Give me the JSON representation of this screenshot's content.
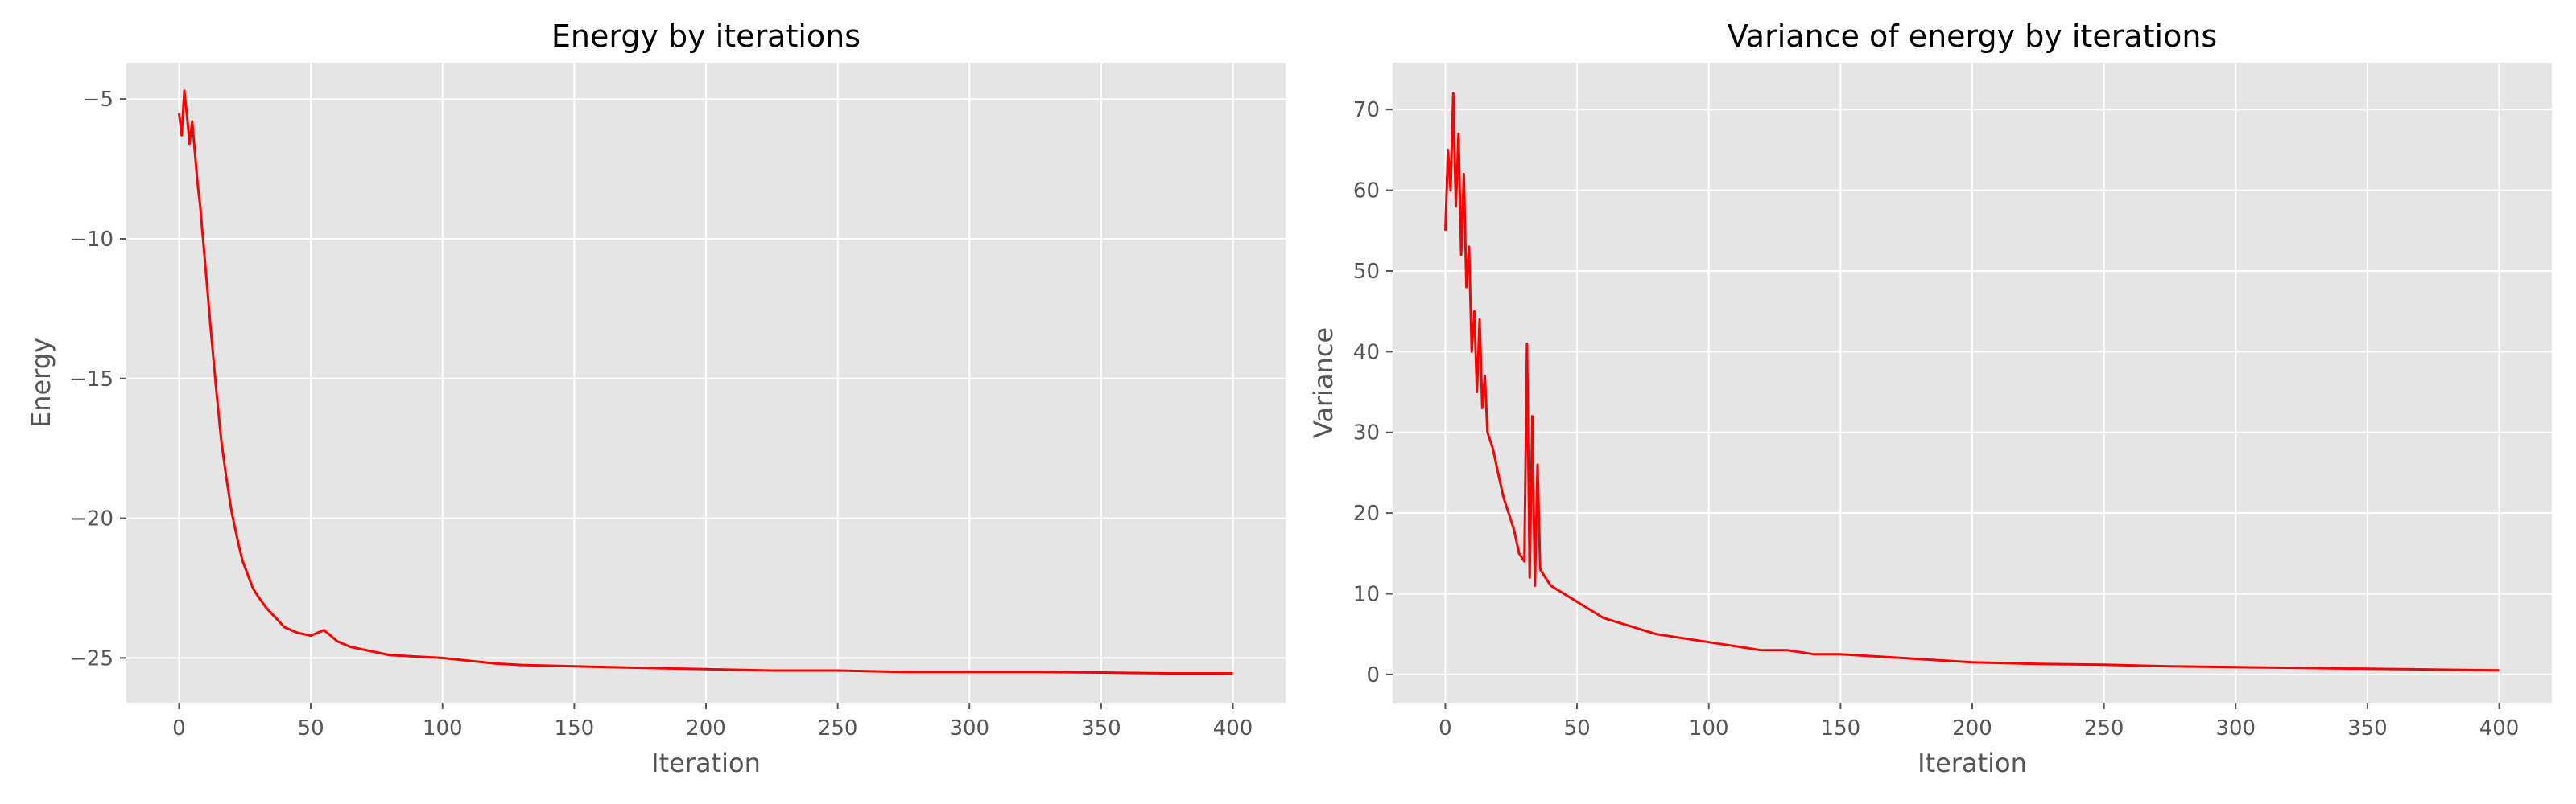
{
  "chart_data": [
    {
      "type": "line",
      "title": "Energy by iterations",
      "xlabel": "Iteration",
      "ylabel": "Energy",
      "xlim": [
        -20,
        420
      ],
      "ylim": [
        -26.6,
        -3.7
      ],
      "xticks": [
        0,
        50,
        100,
        150,
        200,
        250,
        300,
        350,
        400
      ],
      "yticks": [
        -5,
        -10,
        -15,
        -20,
        -25
      ],
      "grid": true,
      "series": [
        {
          "color": "#ff0000",
          "x": [
            0,
            1,
            2,
            3,
            4,
            5,
            6,
            7,
            8,
            9,
            10,
            12,
            14,
            16,
            18,
            20,
            22,
            24,
            26,
            28,
            30,
            33,
            36,
            40,
            45,
            50,
            55,
            60,
            65,
            70,
            75,
            80,
            90,
            100,
            110,
            120,
            130,
            150,
            175,
            200,
            225,
            250,
            275,
            300,
            325,
            350,
            375,
            400
          ],
          "y": [
            -5.5,
            -6.3,
            -4.7,
            -5.6,
            -6.6,
            -5.8,
            -6.9,
            -8.0,
            -8.8,
            -9.9,
            -11.0,
            -13.2,
            -15.3,
            -17.2,
            -18.6,
            -19.8,
            -20.7,
            -21.5,
            -22.0,
            -22.5,
            -22.8,
            -23.2,
            -23.5,
            -23.9,
            -24.1,
            -24.2,
            -24.0,
            -24.4,
            -24.6,
            -24.7,
            -24.8,
            -24.9,
            -24.95,
            -25.0,
            -25.1,
            -25.2,
            -25.25,
            -25.3,
            -25.35,
            -25.4,
            -25.45,
            -25.45,
            -25.5,
            -25.5,
            -25.5,
            -25.52,
            -25.55,
            -25.55
          ]
        }
      ]
    },
    {
      "type": "line",
      "title": "Variance of energy by iterations",
      "xlabel": "Iteration",
      "ylabel": "Variance",
      "xlim": [
        -20,
        420
      ],
      "ylim": [
        -3.5,
        75.8
      ],
      "xticks": [
        0,
        50,
        100,
        150,
        200,
        250,
        300,
        350,
        400
      ],
      "yticks": [
        0,
        10,
        20,
        30,
        40,
        50,
        60,
        70
      ],
      "grid": true,
      "series": [
        {
          "color": "#ff0000",
          "x": [
            0,
            1,
            2,
            3,
            4,
            5,
            6,
            7,
            8,
            9,
            10,
            11,
            12,
            13,
            14,
            15,
            16,
            18,
            20,
            22,
            24,
            26,
            28,
            30,
            31,
            32,
            33,
            34,
            35,
            36,
            38,
            40,
            45,
            50,
            55,
            60,
            70,
            80,
            90,
            100,
            110,
            120,
            130,
            140,
            150,
            175,
            200,
            225,
            250,
            275,
            300,
            325,
            350,
            375,
            400
          ],
          "y": [
            55,
            65,
            60,
            72,
            58,
            67,
            52,
            62,
            48,
            53,
            40,
            45,
            35,
            44,
            33,
            37,
            30,
            28,
            25,
            22,
            20,
            18,
            15,
            14,
            41,
            12,
            32,
            11,
            26,
            13,
            12,
            11,
            10,
            9,
            8,
            7,
            6,
            5,
            4.5,
            4,
            3.5,
            3,
            3,
            2.5,
            2.5,
            2,
            1.5,
            1.3,
            1.2,
            1.0,
            0.9,
            0.8,
            0.7,
            0.6,
            0.5
          ]
        }
      ]
    }
  ]
}
